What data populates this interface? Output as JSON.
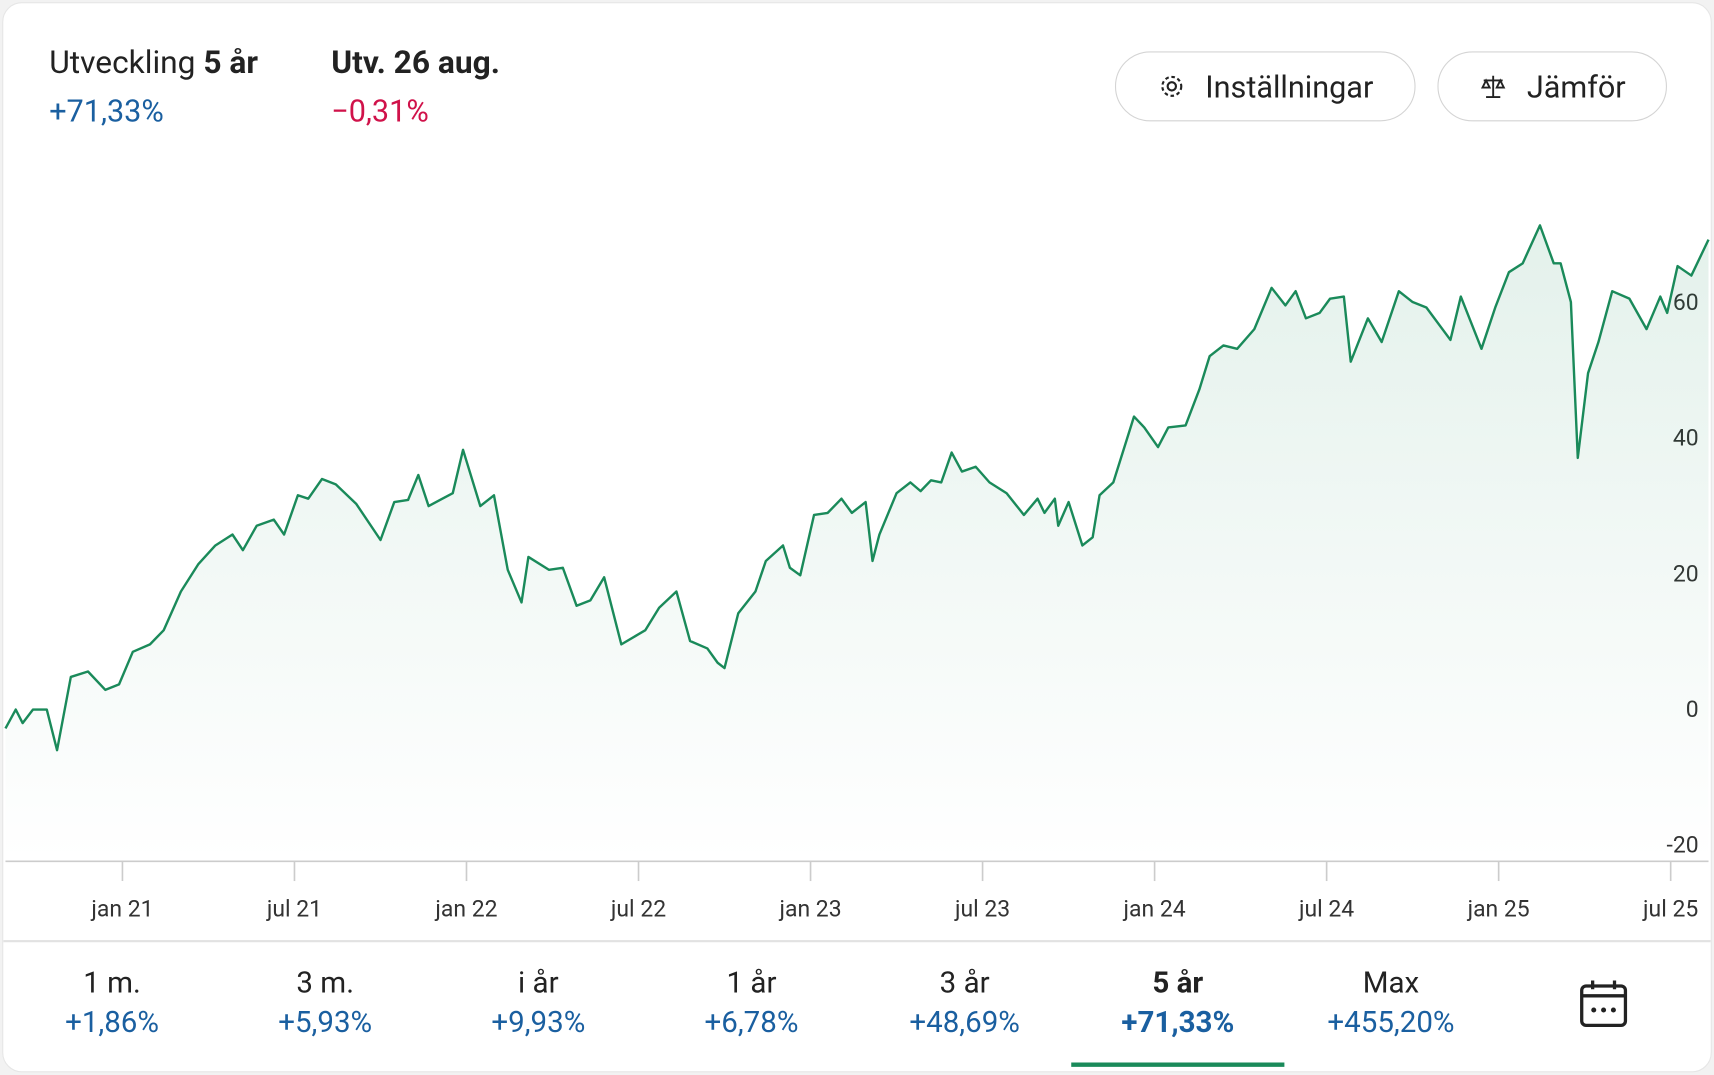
{
  "header": {
    "title": "Utveckling",
    "period": "5 år",
    "change": "+71,33%",
    "day_label": "Utv. 26 aug.",
    "day_change": "−0,31%"
  },
  "buttons": [
    "Inställningar",
    "Jämför"
  ],
  "chart_data": {
    "type": "line",
    "color": "#1a8a5a",
    "x": [
      2020.66,
      2020.69,
      2020.71,
      2020.74,
      2020.78,
      2020.81,
      2020.85,
      2020.9,
      2020.95,
      2020.99,
      2021.03,
      2021.08,
      2021.12,
      2021.17,
      2021.22,
      2021.27,
      2021.32,
      2021.35,
      2021.39,
      2021.44,
      2021.47,
      2021.51,
      2021.54,
      2021.58,
      2021.62,
      2021.68,
      2021.75,
      2021.79,
      2021.83,
      2021.86,
      2021.89,
      2021.93,
      2021.96,
      2021.99,
      2022.04,
      2022.08,
      2022.12,
      2022.16,
      2022.18,
      2022.24,
      2022.28,
      2022.32,
      2022.36,
      2022.4,
      2022.45,
      2022.52,
      2022.56,
      2022.61,
      2022.65,
      2022.7,
      2022.73,
      2022.75,
      2022.79,
      2022.84,
      2022.87,
      2022.92,
      2022.94,
      2022.97,
      2023.01,
      2023.05,
      2023.09,
      2023.12,
      2023.16,
      2023.18,
      2023.2,
      2023.25,
      2023.29,
      2023.32,
      2023.35,
      2023.38,
      2023.41,
      2023.44,
      2023.48,
      2023.52,
      2023.57,
      2023.62,
      2023.66,
      2023.68,
      2023.71,
      2023.72,
      2023.75,
      2023.79,
      2023.82,
      2023.84,
      2023.88,
      2023.94,
      2023.97,
      2024.01,
      2024.04,
      2024.09,
      2024.13,
      2024.16,
      2024.2,
      2024.24,
      2024.29,
      2024.34,
      2024.38,
      2024.41,
      2024.44,
      2024.48,
      2024.51,
      2024.55,
      2024.57,
      2024.62,
      2024.66,
      2024.71,
      2024.75,
      2024.79,
      2024.86,
      2024.89,
      2024.95,
      2024.99,
      2025.03,
      2025.07,
      2025.12,
      2025.16,
      2025.18,
      2025.21,
      2025.23,
      2025.26,
      2025.29,
      2025.33,
      2025.38,
      2025.43,
      2025.47,
      2025.49,
      2025.52,
      2025.56,
      2025.61
    ],
    "values": [
      -2.6,
      0.2,
      -1.8,
      0.2,
      0.2,
      -5.8,
      5.0,
      5.8,
      3.1,
      3.9,
      8.7,
      9.8,
      11.9,
      17.6,
      21.6,
      24.4,
      26.0,
      23.7,
      27.3,
      28.2,
      26.0,
      31.8,
      31.3,
      34.2,
      33.4,
      30.5,
      25.2,
      30.8,
      31.1,
      34.8,
      30.2,
      31.3,
      32.1,
      38.5,
      30.2,
      31.8,
      20.8,
      16.0,
      22.7,
      20.8,
      21.1,
      15.5,
      16.3,
      19.7,
      9.8,
      11.9,
      15.2,
      17.6,
      10.3,
      9.2,
      7.1,
      6.3,
      14.4,
      17.6,
      22.1,
      24.4,
      21.1,
      20.0,
      28.9,
      29.2,
      31.3,
      29.2,
      30.8,
      22.1,
      26.0,
      32.1,
      33.7,
      32.4,
      34.0,
      33.7,
      38.1,
      35.3,
      36.0,
      33.7,
      32.1,
      28.9,
      31.3,
      29.2,
      31.3,
      27.3,
      30.8,
      24.4,
      25.6,
      31.8,
      33.7,
      43.4,
      41.8,
      38.9,
      41.8,
      42.1,
      47.4,
      52.3,
      53.9,
      53.4,
      56.3,
      62.4,
      59.8,
      61.9,
      57.9,
      58.7,
      60.8,
      61.1,
      51.5,
      57.9,
      54.4,
      61.9,
      60.3,
      59.5,
      54.7,
      61.1,
      53.4,
      59.5,
      64.7,
      66.0,
      71.6,
      66.0,
      66.0,
      60.3,
      37.3,
      49.8,
      54.4,
      61.9,
      60.8,
      56.3,
      61.1,
      58.7,
      65.6,
      64.2,
      69.5
    ],
    "xlim": [
      2020.66,
      2025.61
    ],
    "ylim": [
      -22.2,
      80.5
    ],
    "xticks": [
      {
        "value": 2021.0,
        "label": "jan 21"
      },
      {
        "value": 2021.5,
        "label": "jul 21"
      },
      {
        "value": 2022.0,
        "label": "jan 22"
      },
      {
        "value": 2022.5,
        "label": "jul 22"
      },
      {
        "value": 2023.0,
        "label": "jan 23"
      },
      {
        "value": 2023.5,
        "label": "jul 23"
      },
      {
        "value": 2024.0,
        "label": "jan 24"
      },
      {
        "value": 2024.5,
        "label": "jul 24"
      },
      {
        "value": 2025.0,
        "label": "jan 25"
      },
      {
        "value": 2025.5,
        "label": "jul 25"
      }
    ],
    "yticks": [
      60,
      40,
      20,
      0,
      -20
    ]
  },
  "periods": [
    {
      "label": "1 m.",
      "change": "+1,86%"
    },
    {
      "label": "3 m.",
      "change": "+5,93%"
    },
    {
      "label": "i år",
      "change": "+9,93%"
    },
    {
      "label": "1 år",
      "change": "+6,78%"
    },
    {
      "label": "3 år",
      "change": "+48,69%"
    },
    {
      "label": "5 år",
      "change": "+71,33%"
    },
    {
      "label": "Max",
      "change": "+455,20%"
    }
  ]
}
